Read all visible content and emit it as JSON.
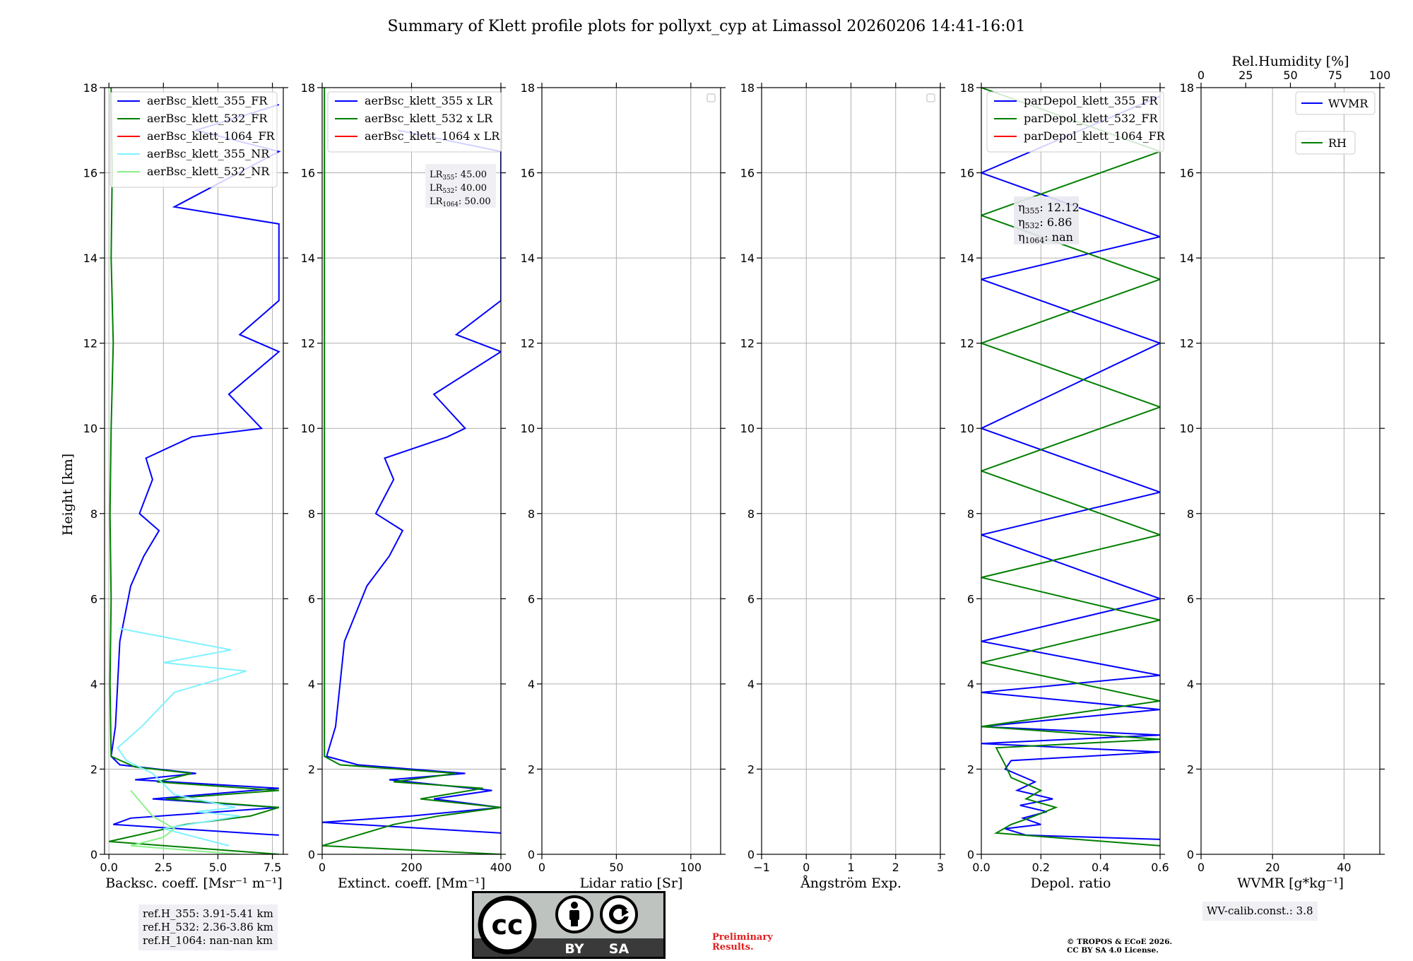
{
  "title": "Summary of Klett profile plots for pollyxt_cyp at Limassol 20260206 14:41-16:01",
  "ylabel": "Height [km]",
  "ref_heights": [
    "ref.H_355: 3.91-5.41 km",
    "ref.H_532: 2.36-3.86 km",
    "ref.H_1064: nan-nan km"
  ],
  "wv_calib": "WV-calib.const.: 3.8",
  "preliminary": [
    "Preliminary",
    "Results."
  ],
  "copyright": [
    "© TROPOS & ECoE 2026.",
    "CC BY SA 4.0 License."
  ],
  "license_badge": {
    "left": "BY",
    "right": "SA"
  },
  "colors": {
    "c355": "#0000ff",
    "c532": "#007f00",
    "c1064": "#ff0000",
    "c355nr": "#7ff2ff",
    "c532nr": "#8cf28c",
    "grid": "#b0b0b0"
  },
  "chart_data": [
    {
      "type": "line",
      "id": "backscatter",
      "xlabel": "Backsc. coeff. [Msr⁻¹ m⁻¹]",
      "xlim": [
        -0.2,
        8.0
      ],
      "ylim": [
        0,
        18
      ],
      "xticks": [
        0,
        2.5,
        5,
        7.5
      ],
      "xtick_labels": [
        "0.0",
        "2.5",
        "5.0",
        "7.5"
      ],
      "yticks": [
        0,
        2,
        4,
        6,
        8,
        10,
        12,
        14,
        16,
        18
      ],
      "legend_location": "top-left",
      "series": [
        {
          "name": "aerBsc_klett_355_FR",
          "color": "c355",
          "points": [
            [
              7.8,
              0.45
            ],
            [
              0.2,
              0.7
            ],
            [
              1.0,
              0.85
            ],
            [
              7.8,
              1.1
            ],
            [
              2.0,
              1.3
            ],
            [
              7.8,
              1.55
            ],
            [
              1.2,
              1.75
            ],
            [
              4.0,
              1.9
            ],
            [
              0.5,
              2.1
            ],
            [
              0.1,
              2.3
            ],
            [
              0.3,
              3.0
            ],
            [
              0.4,
              4.0
            ],
            [
              0.5,
              5.0
            ],
            [
              1.0,
              6.3
            ],
            [
              1.6,
              7.0
            ],
            [
              2.3,
              7.6
            ],
            [
              1.4,
              8.0
            ],
            [
              2.0,
              8.8
            ],
            [
              1.7,
              9.3
            ],
            [
              3.8,
              9.8
            ],
            [
              7.0,
              10.0
            ],
            [
              5.5,
              10.8
            ],
            [
              7.8,
              11.8
            ],
            [
              6.0,
              12.2
            ],
            [
              7.8,
              13.0
            ],
            [
              7.8,
              13.5
            ],
            [
              7.8,
              14.3
            ],
            [
              7.8,
              14.8
            ],
            [
              3.0,
              15.2
            ],
            [
              7.8,
              16.5
            ],
            [
              4.0,
              17.0
            ],
            [
              7.8,
              17.6
            ]
          ]
        },
        {
          "name": "aerBsc_klett_532_FR",
          "color": "c532",
          "points": [
            [
              7.8,
              0.0
            ],
            [
              0.0,
              0.3
            ],
            [
              3.5,
              0.7
            ],
            [
              6.5,
              0.9
            ],
            [
              7.8,
              1.1
            ],
            [
              2.6,
              1.3
            ],
            [
              7.8,
              1.5
            ],
            [
              2.2,
              1.7
            ],
            [
              3.8,
              1.9
            ],
            [
              1.2,
              2.05
            ],
            [
              0.1,
              2.3
            ],
            [
              0.05,
              4.0
            ],
            [
              0.1,
              6.0
            ],
            [
              0.05,
              8.0
            ],
            [
              0.1,
              10.0
            ],
            [
              0.2,
              12.0
            ],
            [
              0.1,
              14.0
            ],
            [
              0.15,
              16.0
            ],
            [
              0.1,
              18.0
            ]
          ]
        },
        {
          "name": "aerBsc_klett_1064_FR",
          "color": "c1064",
          "points": []
        },
        {
          "name": "aerBsc_klett_355_NR",
          "color": "c355nr",
          "points": [
            [
              5.5,
              0.2
            ],
            [
              2.5,
              0.6
            ],
            [
              6.0,
              0.9
            ],
            [
              4.0,
              1.0
            ],
            [
              5.8,
              1.1
            ],
            [
              3.0,
              1.4
            ],
            [
              2.0,
              1.9
            ],
            [
              0.8,
              2.2
            ],
            [
              0.4,
              2.5
            ],
            [
              1.5,
              3.0
            ],
            [
              3.0,
              3.8
            ],
            [
              6.3,
              4.3
            ],
            [
              2.5,
              4.5
            ],
            [
              5.6,
              4.8
            ],
            [
              0.5,
              5.3
            ]
          ]
        },
        {
          "name": "aerBsc_klett_532_NR",
          "color": "c532nr",
          "points": [
            [
              6.0,
              0.0
            ],
            [
              1.0,
              0.2
            ],
            [
              2.5,
              0.4
            ],
            [
              3.0,
              0.6
            ],
            [
              2.0,
              0.9
            ],
            [
              1.0,
              1.5
            ]
          ]
        }
      ]
    },
    {
      "type": "line",
      "id": "extinction",
      "xlabel": "Extinct. coeff. [Mm⁻¹]",
      "xlim": [
        0,
        400
      ],
      "ylim": [
        0,
        18
      ],
      "xticks": [
        0,
        200,
        400
      ],
      "xtick_labels": [
        "0",
        "200",
        "400"
      ],
      "yticks": [
        0,
        2,
        4,
        6,
        8,
        10,
        12,
        14,
        16,
        18
      ],
      "legend_location": "top-left",
      "lidar_ratios": [
        "LR355: 45.00",
        "LR532: 40.00",
        "LR1064: 50.00"
      ],
      "series": [
        {
          "name": "aerBsc_klett_355 x LR",
          "color": "c355",
          "points": [
            [
              400,
              0.5
            ],
            [
              0,
              0.75
            ],
            [
              200,
              0.9
            ],
            [
              400,
              1.1
            ],
            [
              250,
              1.3
            ],
            [
              380,
              1.5
            ],
            [
              150,
              1.75
            ],
            [
              320,
              1.9
            ],
            [
              80,
              2.1
            ],
            [
              10,
              2.3
            ],
            [
              30,
              3.0
            ],
            [
              40,
              4.0
            ],
            [
              50,
              5.0
            ],
            [
              100,
              6.3
            ],
            [
              150,
              7.0
            ],
            [
              180,
              7.6
            ],
            [
              120,
              8.0
            ],
            [
              160,
              8.8
            ],
            [
              140,
              9.3
            ],
            [
              280,
              9.8
            ],
            [
              320,
              10.0
            ],
            [
              250,
              10.8
            ],
            [
              400,
              11.8
            ],
            [
              300,
              12.2
            ],
            [
              400,
              13.0
            ],
            [
              400,
              14.3
            ],
            [
              400,
              16.5
            ],
            [
              170,
              17.0
            ]
          ]
        },
        {
          "name": "aerBsc_klett_532 x LR",
          "color": "c532",
          "points": [
            [
              400,
              0.0
            ],
            [
              0,
              0.2
            ],
            [
              160,
              0.7
            ],
            [
              260,
              0.9
            ],
            [
              400,
              1.1
            ],
            [
              220,
              1.3
            ],
            [
              360,
              1.55
            ],
            [
              160,
              1.7
            ],
            [
              300,
              1.9
            ],
            [
              40,
              2.1
            ],
            [
              5,
              2.3
            ],
            [
              5,
              6.0
            ],
            [
              5,
              10.0
            ],
            [
              5,
              14.0
            ],
            [
              5,
              18.0
            ]
          ]
        },
        {
          "name": "aerBsc_klett_1064 x LR",
          "color": "c1064",
          "points": []
        }
      ]
    },
    {
      "type": "line",
      "id": "lidar_ratio",
      "xlabel": "Lidar ratio [Sr]",
      "xlim": [
        0,
        120
      ],
      "ylim": [
        0,
        18
      ],
      "xticks": [
        0,
        50,
        100
      ],
      "xtick_labels": [
        "0",
        "50",
        "100"
      ],
      "yticks": [
        0,
        2,
        4,
        6,
        8,
        10,
        12,
        14,
        16,
        18
      ],
      "legend_location": "top-right",
      "series": []
    },
    {
      "type": "line",
      "id": "angstrom",
      "xlabel": "Ångström Exp.",
      "xlim": [
        -1,
        3
      ],
      "ylim": [
        0,
        18
      ],
      "xticks": [
        -1,
        0,
        1,
        2,
        3
      ],
      "xtick_labels": [
        "−1",
        "0",
        "1",
        "2",
        "3"
      ],
      "yticks": [
        0,
        2,
        4,
        6,
        8,
        10,
        12,
        14,
        16,
        18
      ],
      "legend_location": "top-right",
      "series": []
    },
    {
      "type": "line",
      "id": "depol",
      "xlabel": "Depol. ratio",
      "xlim": [
        0,
        0.6
      ],
      "ylim": [
        0,
        18
      ],
      "xticks": [
        0,
        0.2,
        0.4,
        0.6
      ],
      "xtick_labels": [
        "0.0",
        "0.2",
        "0.4",
        "0.6"
      ],
      "yticks": [
        0,
        2,
        4,
        6,
        8,
        10,
        12,
        14,
        16,
        18
      ],
      "legend_location": "top-left",
      "eta": [
        "η355: 12.12",
        "η532: 6.86",
        "η1064: nan"
      ],
      "series": [
        {
          "name": "parDepol_klett_355_FR",
          "color": "c355",
          "points": [
            [
              0.6,
              0.35
            ],
            [
              0.15,
              0.45
            ],
            [
              0.08,
              0.6
            ],
            [
              0.2,
              0.7
            ],
            [
              0.14,
              0.85
            ],
            [
              0.22,
              1.0
            ],
            [
              0.13,
              1.15
            ],
            [
              0.24,
              1.3
            ],
            [
              0.12,
              1.5
            ],
            [
              0.18,
              1.7
            ],
            [
              0.08,
              2.0
            ],
            [
              0.1,
              2.2
            ],
            [
              0.6,
              2.4
            ],
            [
              0.0,
              2.6
            ],
            [
              0.6,
              2.8
            ],
            [
              0.0,
              3.0
            ],
            [
              0.6,
              3.4
            ],
            [
              0.0,
              3.8
            ],
            [
              0.6,
              4.2
            ],
            [
              0.0,
              5.0
            ],
            [
              0.6,
              6.0
            ],
            [
              0.0,
              7.5
            ],
            [
              0.6,
              8.5
            ],
            [
              0.0,
              10.0
            ],
            [
              0.6,
              12.0
            ],
            [
              0.0,
              13.5
            ],
            [
              0.6,
              14.5
            ],
            [
              0.0,
              16.0
            ],
            [
              0.6,
              17.8
            ]
          ]
        },
        {
          "name": "parDepol_klett_532_FR",
          "color": "c532",
          "points": [
            [
              0.6,
              0.2
            ],
            [
              0.05,
              0.5
            ],
            [
              0.1,
              0.7
            ],
            [
              0.16,
              0.85
            ],
            [
              0.25,
              1.1
            ],
            [
              0.15,
              1.3
            ],
            [
              0.2,
              1.5
            ],
            [
              0.1,
              1.8
            ],
            [
              0.08,
              2.1
            ],
            [
              0.05,
              2.5
            ],
            [
              0.6,
              2.7
            ],
            [
              0.0,
              3.0
            ],
            [
              0.6,
              3.6
            ],
            [
              0.0,
              4.5
            ],
            [
              0.6,
              5.5
            ],
            [
              0.0,
              6.5
            ],
            [
              0.6,
              7.5
            ],
            [
              0.0,
              9.0
            ],
            [
              0.6,
              10.5
            ],
            [
              0.0,
              12.0
            ],
            [
              0.6,
              13.5
            ],
            [
              0.0,
              15.0
            ],
            [
              0.6,
              16.5
            ],
            [
              0.0,
              18.0
            ]
          ]
        },
        {
          "name": "parDepol_klett_1064_FR",
          "color": "c1064",
          "points": []
        }
      ]
    },
    {
      "type": "line",
      "id": "wvmr_rh",
      "xlabel": "WVMR [g*kg⁻¹]",
      "top_xlabel": "Rel.Humidity [%]",
      "xlim": [
        0,
        50
      ],
      "top_xlim": [
        0,
        100
      ],
      "ylim": [
        0,
        18
      ],
      "xticks": [
        0,
        20,
        40
      ],
      "xtick_labels": [
        "0",
        "20",
        "40"
      ],
      "top_xticks": [
        0,
        25,
        50,
        75,
        100
      ],
      "top_xtick_labels": [
        "0",
        "25",
        "50",
        "75",
        "100"
      ],
      "yticks": [
        0,
        2,
        4,
        6,
        8,
        10,
        12,
        14,
        16,
        18
      ],
      "legend_location": "top-right",
      "series": [
        {
          "name": "WVMR",
          "color": "c355",
          "points": []
        },
        {
          "name": "RH",
          "color": "c532",
          "points": []
        }
      ]
    }
  ]
}
